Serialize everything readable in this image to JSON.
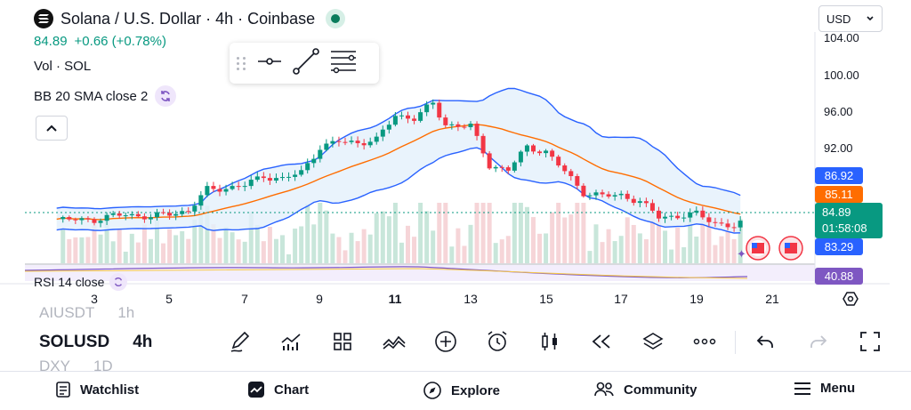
{
  "header": {
    "title": "Solana / U.S. Dollar · 4h · Coinbase",
    "logo_icon": "solana-logo",
    "live_icon": "market-open-dot"
  },
  "quote": {
    "price": "84.89",
    "change": "+0.66 (+0.78%)"
  },
  "indicators": {
    "volume_label": "Vol · SOL",
    "bb_label": "BB 20 SMA close 2",
    "rsi_label": "RSI 14 close"
  },
  "currency": {
    "selected": "USD"
  },
  "y_axis": {
    "ticks": [
      "104.00",
      "100.00",
      "96.00",
      "92.00"
    ],
    "badges": {
      "upper": "86.92",
      "basis": "85.11",
      "price": "84.89",
      "countdown": "01:58:08",
      "lower": "83.29",
      "rsi": "40.88"
    }
  },
  "x_axis": {
    "ticks": [
      "3",
      "5",
      "7",
      "9",
      "11",
      "13",
      "15",
      "17",
      "19",
      "21"
    ]
  },
  "symbol_picker": {
    "prev": {
      "symbol": "AIUSDT",
      "interval": "1h"
    },
    "current": {
      "symbol": "SOLUSD",
      "interval": "4h"
    },
    "next": {
      "symbol": "DXY",
      "interval": "1D"
    }
  },
  "toolbar": {
    "icons": [
      "draw-icon",
      "indicators-icon",
      "layout-icon",
      "compare-icon",
      "add-icon",
      "alert-icon",
      "chart-type-icon",
      "replay-icon",
      "layers-icon",
      "more-icon",
      "undo-icon",
      "redo-icon",
      "fullscreen-icon"
    ]
  },
  "nav": {
    "watchlist": "Watchlist",
    "chart": "Chart",
    "explore": "Explore",
    "community": "Community",
    "menu": "Menu"
  },
  "colors": {
    "up": "#089981",
    "down": "#f23645",
    "bb_band": "#2962ff",
    "bb_basis": "#ff6d00",
    "rsi": "#7e57c2",
    "price_badge": "#089981",
    "upper_badge": "#2962ff",
    "basis_badge": "#ff6d00",
    "rsi_badge": "#7e57c2"
  },
  "chart_data": {
    "type": "candlestick",
    "timeframe": "4h",
    "ylim": [
      80,
      105
    ],
    "x_ticks": [
      "3",
      "5",
      "7",
      "9",
      "11",
      "13",
      "15",
      "17",
      "19",
      "21"
    ],
    "segments": [
      {
        "day": 2.0,
        "close": 85.0
      },
      {
        "day": 3.0,
        "close": 85.0
      },
      {
        "day": 3.8,
        "close": 85.6
      },
      {
        "day": 4.5,
        "close": 85.3
      },
      {
        "day": 5.5,
        "close": 86.0
      },
      {
        "day": 6.0,
        "close": 88.3
      },
      {
        "day": 6.5,
        "close": 88.5
      },
      {
        "day": 7.0,
        "close": 88.8
      },
      {
        "day": 7.5,
        "close": 89.8
      },
      {
        "day": 8.0,
        "close": 89.5
      },
      {
        "day": 8.5,
        "close": 90.2
      },
      {
        "day": 9.0,
        "close": 93.0
      },
      {
        "day": 9.5,
        "close": 93.6
      },
      {
        "day": 10.0,
        "close": 93.5
      },
      {
        "day": 10.5,
        "close": 93.8
      },
      {
        "day": 11.0,
        "close": 96.5
      },
      {
        "day": 11.5,
        "close": 96.2
      },
      {
        "day": 12.0,
        "close": 97.8
      },
      {
        "day": 12.3,
        "close": 95.5
      },
      {
        "day": 13.0,
        "close": 95.3
      },
      {
        "day": 13.5,
        "close": 91.0
      },
      {
        "day": 14.0,
        "close": 90.5
      },
      {
        "day": 14.5,
        "close": 93.0
      },
      {
        "day": 15.0,
        "close": 92.5
      },
      {
        "day": 15.5,
        "close": 90.3
      },
      {
        "day": 16.0,
        "close": 88.0
      },
      {
        "day": 16.5,
        "close": 87.6
      },
      {
        "day": 17.0,
        "close": 87.7
      },
      {
        "day": 17.5,
        "close": 87.0
      },
      {
        "day": 18.0,
        "close": 85.3
      },
      {
        "day": 18.5,
        "close": 85.4
      },
      {
        "day": 19.0,
        "close": 85.6
      },
      {
        "day": 19.5,
        "close": 84.7
      },
      {
        "day": 20.0,
        "close": 84.2
      },
      {
        "day": 20.3,
        "close": 84.89
      }
    ],
    "bollinger": {
      "period": 20,
      "mult": 2,
      "upper_last": 86.92,
      "basis_last": 85.11,
      "lower_last": 83.29
    },
    "rsi": {
      "period": 14,
      "last": 40.88
    }
  }
}
